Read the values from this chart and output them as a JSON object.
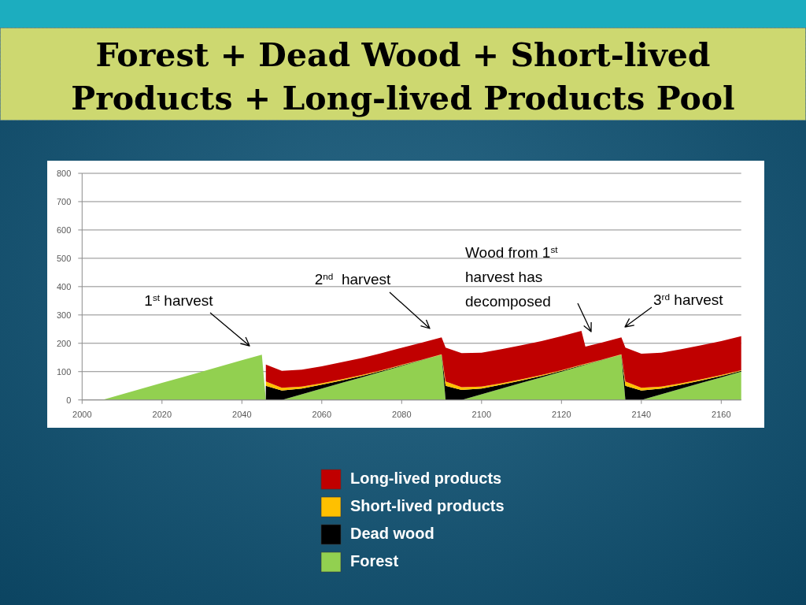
{
  "chart_data": {
    "type": "area",
    "stacked": true,
    "title": "Forest + Dead Wood + Short-lived Products + Long-lived Products Pool",
    "x": [
      2000,
      2005,
      2010,
      2015,
      2020,
      2025,
      2030,
      2035,
      2040,
      2045,
      2046,
      2050,
      2055,
      2060,
      2065,
      2070,
      2075,
      2080,
      2085,
      2090,
      2091,
      2095,
      2100,
      2105,
      2110,
      2115,
      2120,
      2125,
      2126,
      2130,
      2135,
      2136,
      2140,
      2145,
      2150,
      2155,
      2160,
      2165
    ],
    "series": [
      {
        "name": "Forest",
        "color": "#92d050",
        "values": [
          0,
          0,
          20,
          40,
          60,
          80,
          100,
          120,
          140,
          160,
          0,
          0,
          20,
          40,
          60,
          80,
          100,
          120,
          140,
          160,
          0,
          0,
          20,
          40,
          60,
          80,
          100,
          120,
          124,
          140,
          160,
          0,
          0,
          20,
          40,
          60,
          80,
          100
        ]
      },
      {
        "name": "Dead wood",
        "color": "#000000",
        "values": [
          null,
          null,
          null,
          null,
          null,
          null,
          null,
          null,
          null,
          null,
          50,
          33,
          20,
          14,
          9,
          5,
          3,
          2,
          1,
          0,
          50,
          35,
          20,
          14,
          9,
          5,
          3,
          2,
          2,
          1,
          0,
          50,
          33,
          20,
          14,
          9,
          5,
          3
        ]
      },
      {
        "name": "Short-lived products",
        "color": "#ffc000",
        "values": [
          null,
          null,
          null,
          null,
          null,
          null,
          null,
          null,
          null,
          null,
          15,
          10,
          7,
          5,
          4,
          3,
          2,
          2,
          1,
          1,
          15,
          10,
          7,
          5,
          4,
          3,
          2,
          2,
          2,
          1,
          1,
          15,
          10,
          7,
          5,
          4,
          3,
          2
        ]
      },
      {
        "name": "Long-lived products",
        "color": "#c00000",
        "values": [
          null,
          null,
          null,
          null,
          null,
          null,
          null,
          null,
          null,
          null,
          60,
          60,
          60,
          60,
          60,
          60,
          60,
          60,
          60,
          60,
          120,
          120,
          120,
          120,
          120,
          120,
          120,
          120,
          60,
          60,
          60,
          120,
          120,
          120,
          120,
          120,
          120,
          120
        ]
      }
    ],
    "xlim": [
      2000,
      2165
    ],
    "xticks": [
      2000,
      2020,
      2040,
      2060,
      2080,
      2100,
      2120,
      2140,
      2160
    ],
    "ylim": [
      0,
      800
    ],
    "yticks": [
      0,
      100,
      200,
      300,
      400,
      500,
      600,
      700,
      800
    ],
    "grid": "y",
    "legend": "bottom",
    "annotations": [
      "1$^{st}$ harvest",
      "2$^{nd}$  harvest",
      "Wood from 1$^{st}$ harvest has decomposed",
      "3$^{rd}$ harvest"
    ]
  }
}
